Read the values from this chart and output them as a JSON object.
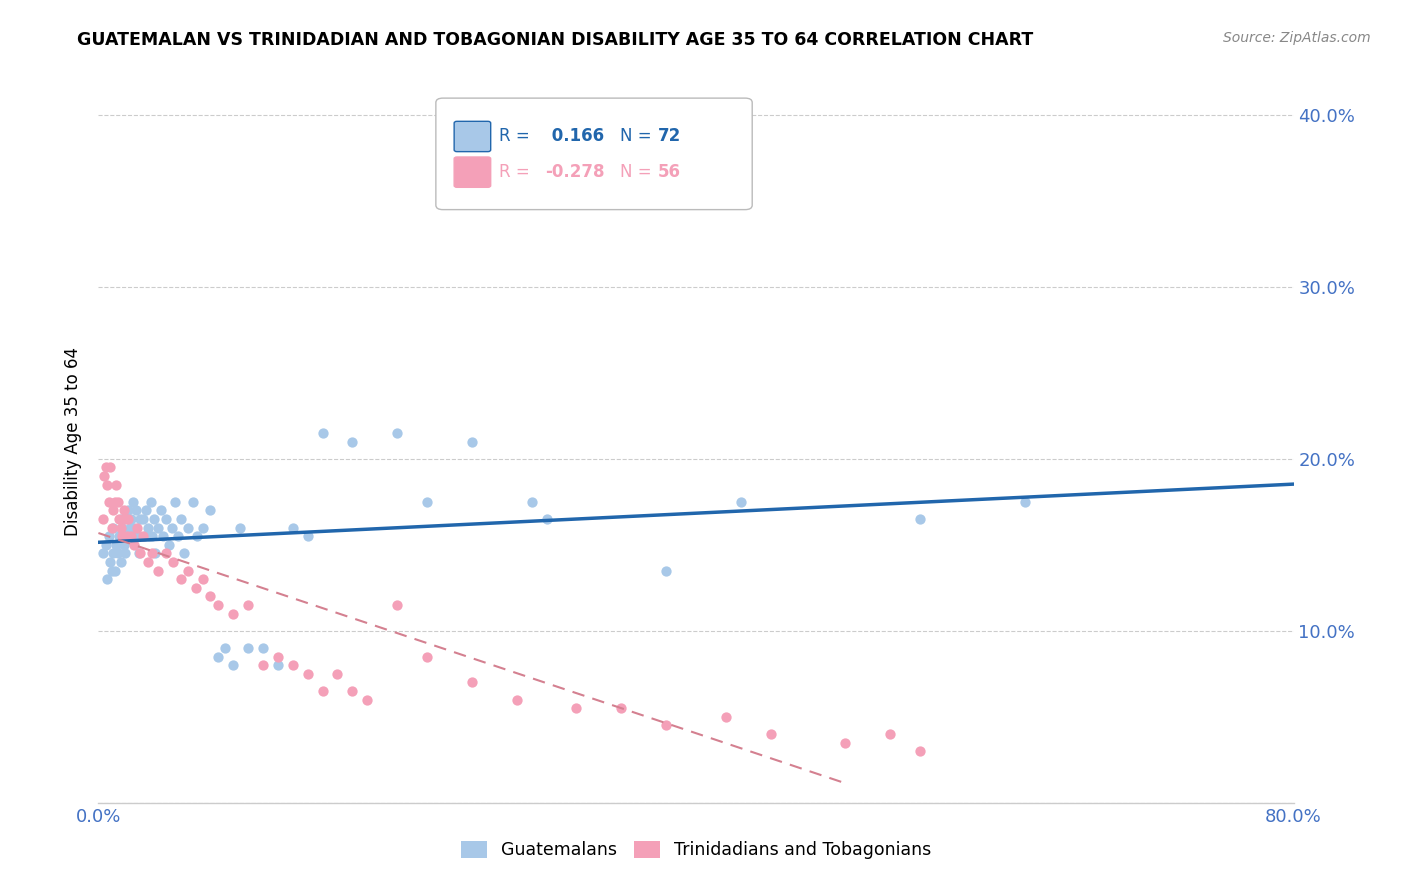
{
  "title": "GUATEMALAN VS TRINIDADIAN AND TOBAGONIAN DISABILITY AGE 35 TO 64 CORRELATION CHART",
  "source": "Source: ZipAtlas.com",
  "ylabel": "Disability Age 35 to 64",
  "xlim": [
    0.0,
    0.8
  ],
  "ylim": [
    0.0,
    0.42
  ],
  "r_guatemalan": 0.166,
  "n_guatemalan": 72,
  "r_trinidadian": -0.278,
  "n_trinidadian": 56,
  "guatemalan_color": "#a8c8e8",
  "trinidadian_color": "#f4a0b8",
  "line_guatemalan_color": "#2166ac",
  "line_trinidadian_color": "#d48090",
  "background_color": "#ffffff",
  "grid_color": "#cccccc",
  "tick_label_color": "#4472c4",
  "guatemalan_x": [
    0.003,
    0.005,
    0.006,
    0.007,
    0.008,
    0.009,
    0.01,
    0.01,
    0.011,
    0.012,
    0.013,
    0.014,
    0.015,
    0.015,
    0.016,
    0.017,
    0.018,
    0.019,
    0.02,
    0.02,
    0.021,
    0.022,
    0.023,
    0.024,
    0.025,
    0.026,
    0.027,
    0.028,
    0.03,
    0.031,
    0.032,
    0.033,
    0.034,
    0.035,
    0.036,
    0.037,
    0.038,
    0.04,
    0.042,
    0.043,
    0.045,
    0.047,
    0.049,
    0.051,
    0.053,
    0.055,
    0.057,
    0.06,
    0.063,
    0.066,
    0.07,
    0.075,
    0.08,
    0.085,
    0.09,
    0.095,
    0.1,
    0.11,
    0.12,
    0.13,
    0.14,
    0.15,
    0.17,
    0.2,
    0.22,
    0.25,
    0.29,
    0.3,
    0.38,
    0.43,
    0.55,
    0.62
  ],
  "guatemalan_y": [
    0.145,
    0.15,
    0.13,
    0.155,
    0.14,
    0.135,
    0.145,
    0.16,
    0.135,
    0.15,
    0.145,
    0.155,
    0.14,
    0.165,
    0.16,
    0.15,
    0.145,
    0.155,
    0.165,
    0.17,
    0.16,
    0.165,
    0.175,
    0.16,
    0.17,
    0.155,
    0.145,
    0.165,
    0.165,
    0.155,
    0.17,
    0.16,
    0.155,
    0.175,
    0.155,
    0.165,
    0.145,
    0.16,
    0.17,
    0.155,
    0.165,
    0.15,
    0.16,
    0.175,
    0.155,
    0.165,
    0.145,
    0.16,
    0.175,
    0.155,
    0.16,
    0.17,
    0.085,
    0.09,
    0.08,
    0.16,
    0.09,
    0.09,
    0.08,
    0.16,
    0.155,
    0.215,
    0.21,
    0.215,
    0.175,
    0.21,
    0.175,
    0.165,
    0.135,
    0.175,
    0.165,
    0.175
  ],
  "trinidadian_x": [
    0.003,
    0.004,
    0.005,
    0.006,
    0.007,
    0.008,
    0.009,
    0.01,
    0.011,
    0.012,
    0.013,
    0.014,
    0.015,
    0.016,
    0.017,
    0.018,
    0.019,
    0.02,
    0.022,
    0.024,
    0.026,
    0.028,
    0.03,
    0.033,
    0.036,
    0.04,
    0.045,
    0.05,
    0.055,
    0.06,
    0.065,
    0.07,
    0.075,
    0.08,
    0.09,
    0.1,
    0.11,
    0.12,
    0.13,
    0.14,
    0.15,
    0.16,
    0.17,
    0.18,
    0.2,
    0.22,
    0.25,
    0.28,
    0.32,
    0.35,
    0.38,
    0.42,
    0.45,
    0.5,
    0.53,
    0.55
  ],
  "trinidadian_y": [
    0.165,
    0.19,
    0.195,
    0.185,
    0.175,
    0.195,
    0.16,
    0.17,
    0.175,
    0.185,
    0.175,
    0.165,
    0.16,
    0.155,
    0.17,
    0.165,
    0.155,
    0.165,
    0.155,
    0.15,
    0.16,
    0.145,
    0.155,
    0.14,
    0.145,
    0.135,
    0.145,
    0.14,
    0.13,
    0.135,
    0.125,
    0.13,
    0.12,
    0.115,
    0.11,
    0.115,
    0.08,
    0.085,
    0.08,
    0.075,
    0.065,
    0.075,
    0.065,
    0.06,
    0.115,
    0.085,
    0.07,
    0.06,
    0.055,
    0.055,
    0.045,
    0.05,
    0.04,
    0.035,
    0.04,
    0.03
  ]
}
